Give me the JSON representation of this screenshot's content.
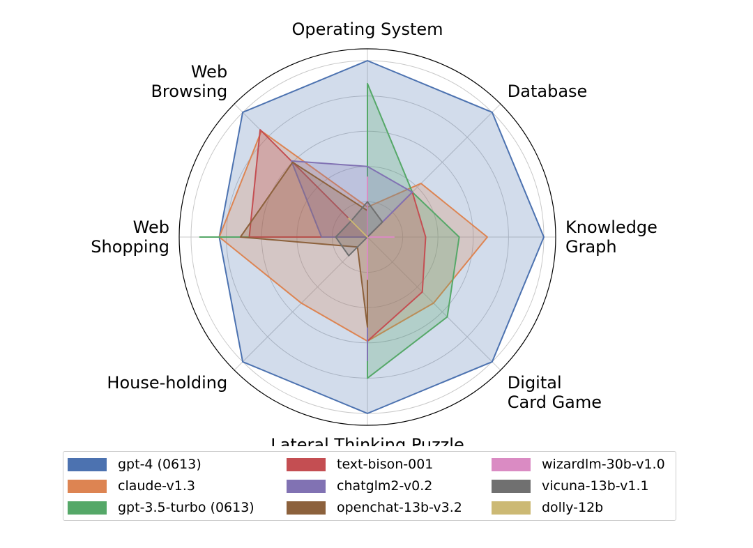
{
  "chart_data": {
    "type": "radar",
    "axes": [
      "Operating System",
      "Database",
      "Knowledge Graph",
      "Digital Card Game",
      "Lateral Thinking Puzzle",
      "House-holding",
      "Web Shopping",
      "Web Browsing"
    ],
    "axis_label_lines": [
      [
        "Operating System"
      ],
      [
        "Database"
      ],
      [
        "Knowledge",
        "Graph"
      ],
      [
        "Digital",
        "Card Game"
      ],
      [
        "Lateral Thinking Puzzle"
      ],
      [
        "House-holding"
      ],
      [
        "Web",
        "Shopping"
      ],
      [
        "Web",
        "Browsing"
      ]
    ],
    "rmax": 1.0,
    "grid": true,
    "legend_placement": "bottom",
    "series": [
      {
        "name": "gpt-4 (0613)",
        "color": "#4c72b0",
        "values": [
          1.0,
          1.0,
          1.0,
          1.0,
          1.0,
          1.0,
          0.84,
          1.0
        ]
      },
      {
        "name": "claude-v1.3",
        "color": "#dd8452",
        "values": [
          0.17,
          0.43,
          0.68,
          0.53,
          0.59,
          0.53,
          0.84,
          0.85
        ]
      },
      {
        "name": "gpt-3.5-turbo (0613)",
        "color": "#55a868",
        "values": [
          0.87,
          0.36,
          0.52,
          0.64,
          0.8,
          0.0,
          0.95,
          0.0
        ]
      },
      {
        "name": "text-bison-001",
        "color": "#c44e52",
        "values": [
          0.0,
          0.36,
          0.33,
          0.44,
          0.59,
          0.0,
          0.67,
          0.86
        ]
      },
      {
        "name": "chatglm2-v0.2",
        "color": "#8172b3",
        "values": [
          0.4,
          0.36,
          0.0,
          0.0,
          0.7,
          0.0,
          0.26,
          0.61
        ]
      },
      {
        "name": "openchat-13b-v3.2",
        "color": "#8c613c",
        "values": [
          0.15,
          0.0,
          0.14,
          0.0,
          0.51,
          0.08,
          0.72,
          0.6
        ]
      },
      {
        "name": "wizardlm-30b-v1.0",
        "color": "#da8bc3",
        "values": [
          0.34,
          0.0,
          0.15,
          0.0,
          0.24,
          0.0,
          0.0,
          0.0
        ]
      },
      {
        "name": "vicuna-13b-v1.1",
        "color": "#707070",
        "values": [
          0.2,
          0.12,
          0.0,
          0.0,
          0.0,
          0.15,
          0.18,
          0.13
        ]
      },
      {
        "name": "dolly-12b",
        "color": "#ccb974",
        "values": [
          0.0,
          0.0,
          0.0,
          0.0,
          0.0,
          0.0,
          0.0,
          0.15
        ]
      }
    ]
  }
}
